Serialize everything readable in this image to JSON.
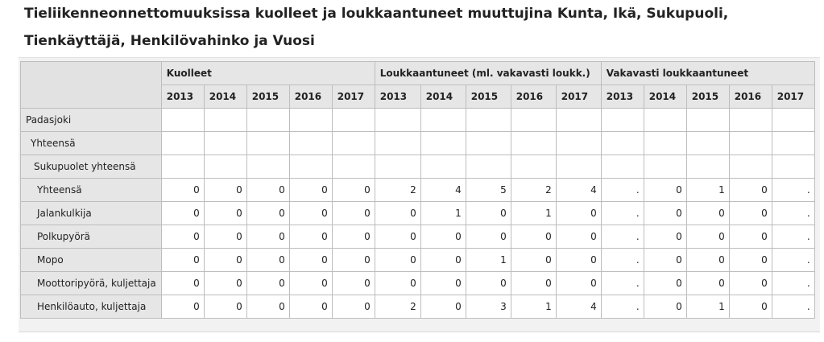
{
  "title": "Tieliikenneonnettomuuksissa kuolleet ja loukkaantuneet muuttujina Kunta, Ikä, Sukupuoli, Tienkäyttäjä, Henkilövahinko ja Vuosi",
  "table": {
    "groups": [
      "Kuolleet",
      "Loukkaantuneet (ml. vakavasti loukk.)",
      "Vakavasti loukkaantuneet"
    ],
    "years": [
      "2013",
      "2014",
      "2015",
      "2016",
      "2017"
    ],
    "rows": [
      {
        "label": "Padasjoki",
        "level": 0,
        "values": [
          "",
          "",
          "",
          "",
          "",
          "",
          "",
          "",
          "",
          "",
          "",
          "",
          "",
          "",
          ""
        ]
      },
      {
        "label": "Yhteensä",
        "level": 1,
        "values": [
          "",
          "",
          "",
          "",
          "",
          "",
          "",
          "",
          "",
          "",
          "",
          "",
          "",
          "",
          ""
        ]
      },
      {
        "label": "Sukupuolet yhteensä",
        "level": 2,
        "values": [
          "",
          "",
          "",
          "",
          "",
          "",
          "",
          "",
          "",
          "",
          "",
          "",
          "",
          "",
          ""
        ]
      },
      {
        "label": "Yhteensä",
        "level": 3,
        "values": [
          "0",
          "0",
          "0",
          "0",
          "0",
          "2",
          "4",
          "5",
          "2",
          "4",
          ".",
          "0",
          "1",
          "0",
          "."
        ]
      },
      {
        "label": "Jalankulkija",
        "level": 3,
        "values": [
          "0",
          "0",
          "0",
          "0",
          "0",
          "0",
          "1",
          "0",
          "1",
          "0",
          ".",
          "0",
          "0",
          "0",
          "."
        ]
      },
      {
        "label": "Polkupyörä",
        "level": 3,
        "values": [
          "0",
          "0",
          "0",
          "0",
          "0",
          "0",
          "0",
          "0",
          "0",
          "0",
          ".",
          "0",
          "0",
          "0",
          "."
        ]
      },
      {
        "label": "Mopo",
        "level": 3,
        "values": [
          "0",
          "0",
          "0",
          "0",
          "0",
          "0",
          "0",
          "1",
          "0",
          "0",
          ".",
          "0",
          "0",
          "0",
          "."
        ]
      },
      {
        "label": "Moottoripyörä, kuljettaja",
        "level": 3,
        "values": [
          "0",
          "0",
          "0",
          "0",
          "0",
          "0",
          "0",
          "0",
          "0",
          "0",
          ".",
          "0",
          "0",
          "0",
          "."
        ]
      },
      {
        "label": "Henkilöauto, kuljettaja",
        "level": 3,
        "values": [
          "0",
          "0",
          "0",
          "0",
          "0",
          "2",
          "0",
          "3",
          "1",
          "4",
          ".",
          "0",
          "1",
          "0",
          "."
        ]
      }
    ]
  }
}
